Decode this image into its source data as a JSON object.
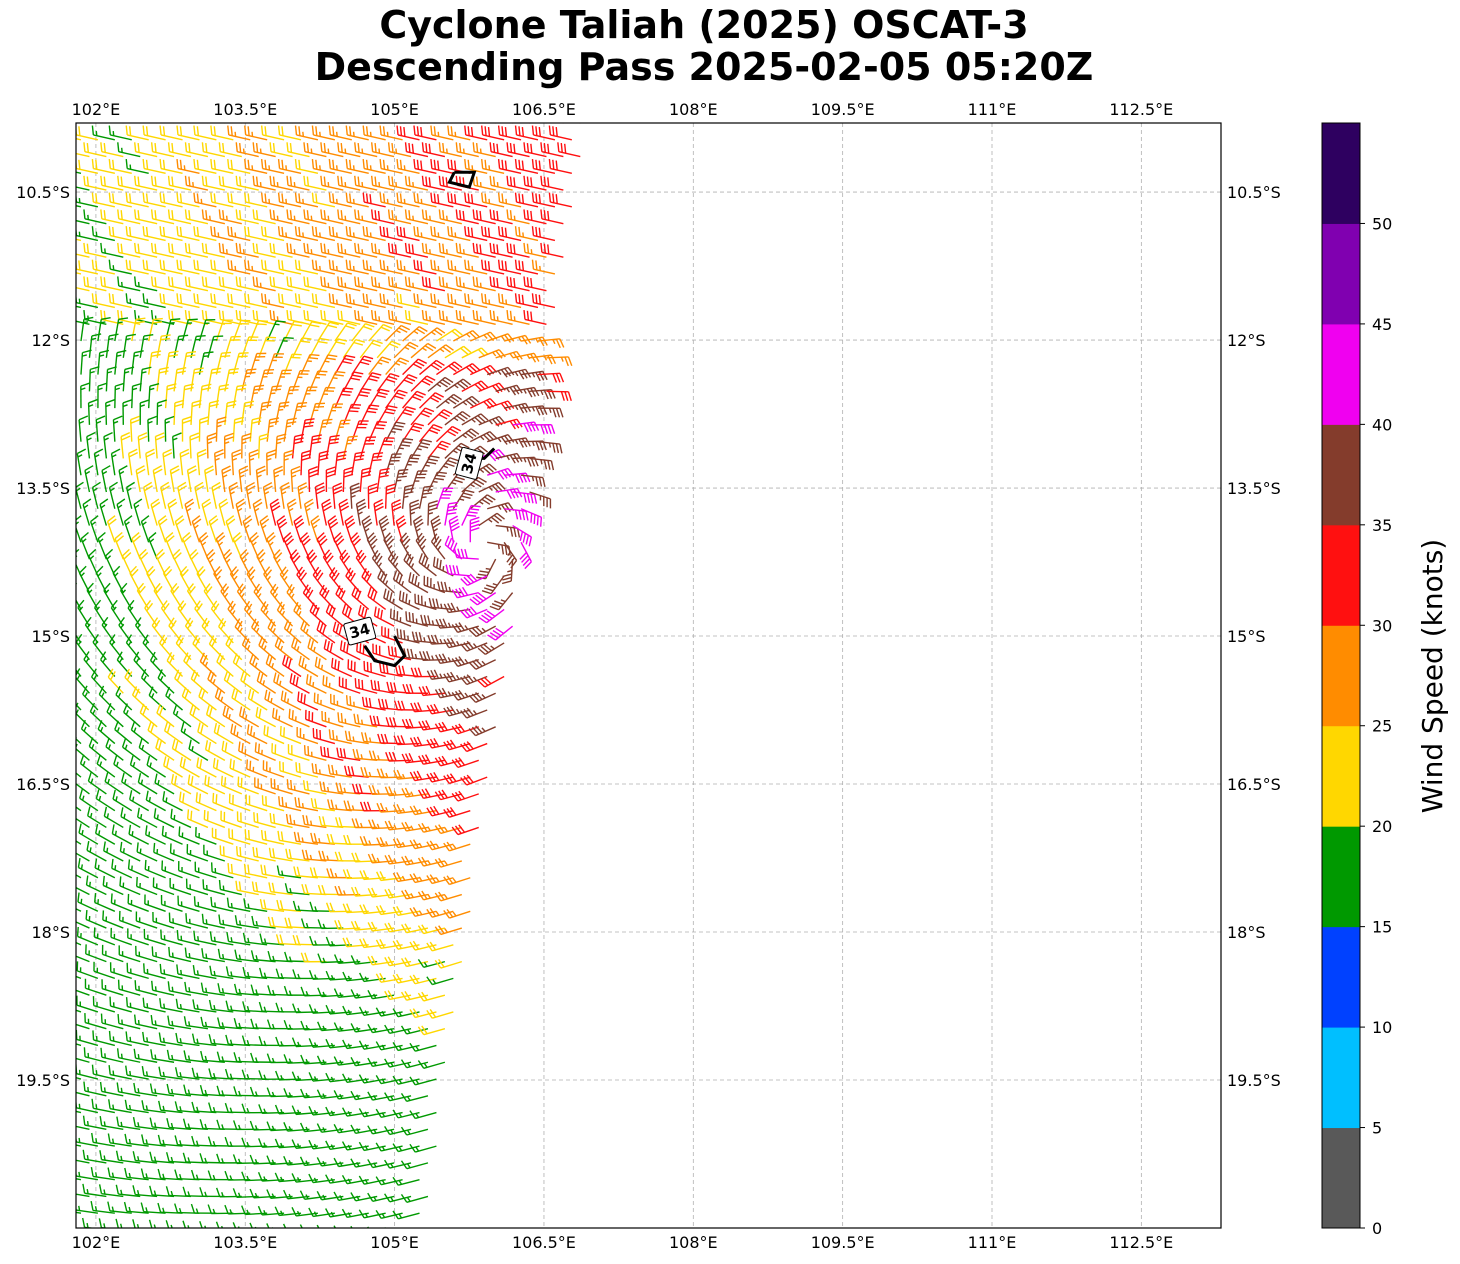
{
  "title": {
    "line1": "Cyclone Taliah (2025) OSCAT-3",
    "line2": "Descending Pass 2025-02-05 05:20Z"
  },
  "map": {
    "lon_range": [
      101.8,
      113.3
    ],
    "lat_range": [
      -21.0,
      -9.8
    ],
    "lon_ticks": [
      {
        "value": 102.0,
        "label": "102°E"
      },
      {
        "value": 103.5,
        "label": "103.5°E"
      },
      {
        "value": 105.0,
        "label": "105°E"
      },
      {
        "value": 106.5,
        "label": "106.5°E"
      },
      {
        "value": 108.0,
        "label": "108°E"
      },
      {
        "value": 109.5,
        "label": "109.5°E"
      },
      {
        "value": 111.0,
        "label": "111°E"
      },
      {
        "value": 112.5,
        "label": "112.5°E"
      }
    ],
    "lat_ticks": [
      {
        "value": -10.5,
        "label": "10.5°S"
      },
      {
        "value": -12.0,
        "label": "12°S"
      },
      {
        "value": -13.5,
        "label": "13.5°S"
      },
      {
        "value": -15.0,
        "label": "15°S"
      },
      {
        "value": -16.5,
        "label": "16.5°S"
      },
      {
        "value": -18.0,
        "label": "18°S"
      },
      {
        "value": -19.5,
        "label": "19.5°S"
      }
    ],
    "grid": true,
    "contour_label": "34"
  },
  "colorbar": {
    "label": "Wind Speed (knots)",
    "boundaries": [
      0,
      5,
      10,
      15,
      20,
      25,
      30,
      35,
      40,
      45,
      50,
      55
    ],
    "tick_labels": [
      "0",
      "5",
      "10",
      "15",
      "20",
      "25",
      "30",
      "35",
      "40",
      "45",
      "50"
    ],
    "colors": [
      "#595959",
      "#00bfff",
      "#0041ff",
      "#009900",
      "#ffd700",
      "#ff8c00",
      "#ff1010",
      "#843c2c",
      "#f000f0",
      "#8000b0",
      "#2e0060"
    ]
  },
  "chart_data": {
    "type": "wind-barbs",
    "units": "knots",
    "swath_note": "Swath covers roughly 101.8–106.9°E, 9.8–21°S; the rest of the map is empty.",
    "wind_speed_bands": [
      {
        "range": [
          15,
          20
        ],
        "color": "#009900",
        "region": "west edge, 102–104°E"
      },
      {
        "range": [
          20,
          25
        ],
        "color": "#ffd700",
        "region": "central swath"
      },
      {
        "range": [
          25,
          30
        ],
        "color": "#ff8c00",
        "region": "eastern swath"
      },
      {
        "range": [
          30,
          35
        ],
        "color": "#ff1010",
        "region": "near cyclone core 105–106°E, 12.5–16°S"
      },
      {
        "range": [
          35,
          40
        ],
        "color": "#843c2c",
        "region": "eastern edge near 106°E, 13–15.5°S"
      },
      {
        "range": [
          40,
          45
        ],
        "color": "#f000f0",
        "region": "isolated near 106.2°E, 12.9°S"
      }
    ],
    "contours": [
      {
        "level": 34,
        "points": [
          [
            104.7,
            -15.1
          ],
          [
            104.8,
            -15.25
          ],
          [
            105.0,
            -15.3
          ],
          [
            105.1,
            -15.2
          ],
          [
            105.0,
            -15.0
          ]
        ]
      },
      {
        "level": 34,
        "points": [
          [
            105.7,
            -13.2
          ],
          [
            105.9,
            -13.2
          ],
          [
            106.0,
            -13.1
          ]
        ]
      },
      {
        "level": 34,
        "points": [
          [
            105.6,
            -10.3
          ],
          [
            105.8,
            -10.3
          ],
          [
            105.75,
            -10.45
          ],
          [
            105.55,
            -10.4
          ],
          [
            105.6,
            -10.3
          ]
        ]
      }
    ]
  }
}
